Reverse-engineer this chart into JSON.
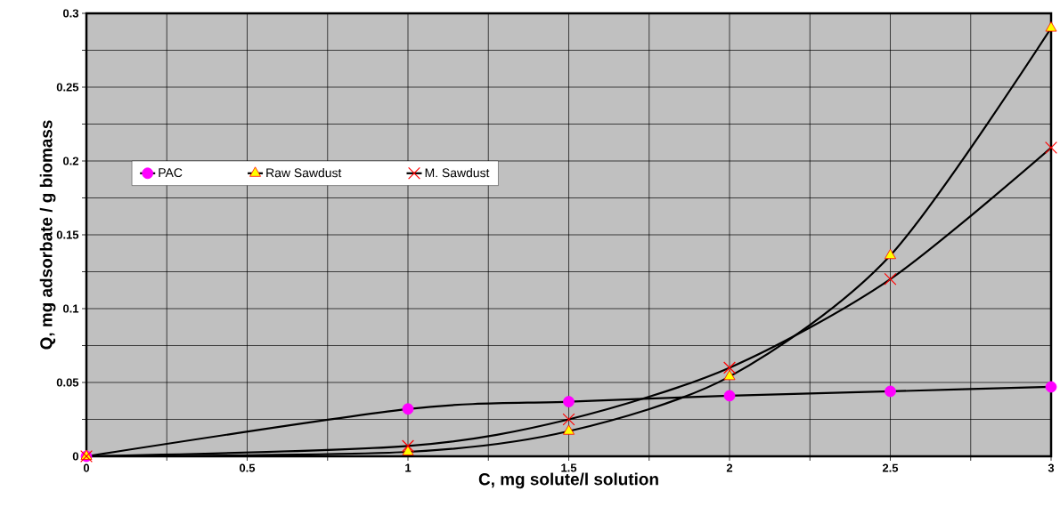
{
  "chart_data": {
    "type": "line",
    "xlabel": "C, mg solute/l solution",
    "ylabel": "Q, mg adsorbate / g biomass",
    "x": [
      0,
      1,
      1.5,
      2,
      2.5,
      3
    ],
    "series": [
      {
        "name": "PAC",
        "color": "#ff00ff",
        "marker": "circle",
        "values": [
          0,
          0.032,
          0.037,
          0.041,
          0.044,
          0.047
        ]
      },
      {
        "name": "Raw Sawdust",
        "color": "#ffff00",
        "marker": "triangle",
        "values": [
          0,
          0.003,
          0.017,
          0.054,
          0.136,
          0.29
        ]
      },
      {
        "name": "M. Sawdust",
        "color": "#ff0000",
        "marker": "cross",
        "values": [
          0,
          0.007,
          0.025,
          0.06,
          0.12,
          0.209
        ]
      }
    ],
    "xlim": [
      0,
      3
    ],
    "ylim": [
      0,
      0.3
    ],
    "xticks": [
      0,
      {
        "value": 0.25,
        "label": null
      },
      0.5,
      {
        "value": 0.75,
        "label": null
      },
      1,
      {
        "value": 1.25,
        "label": null
      },
      1.5,
      {
        "value": 1.75,
        "label": null
      },
      2,
      {
        "value": 2.25,
        "label": null
      },
      2.5,
      {
        "value": 2.75,
        "label": null
      },
      3
    ],
    "yticks": [
      0,
      {
        "value": 0.025,
        "label": null
      },
      0.05,
      {
        "value": 0.075,
        "label": null
      },
      0.1,
      {
        "value": 0.125,
        "label": null
      },
      0.15,
      {
        "value": 0.175,
        "label": null
      },
      0.2,
      {
        "value": 0.225,
        "label": null
      },
      0.25,
      {
        "value": 0.275,
        "label": null
      },
      0.3
    ],
    "grid": true,
    "legend": "top left",
    "line_style": "solid"
  }
}
